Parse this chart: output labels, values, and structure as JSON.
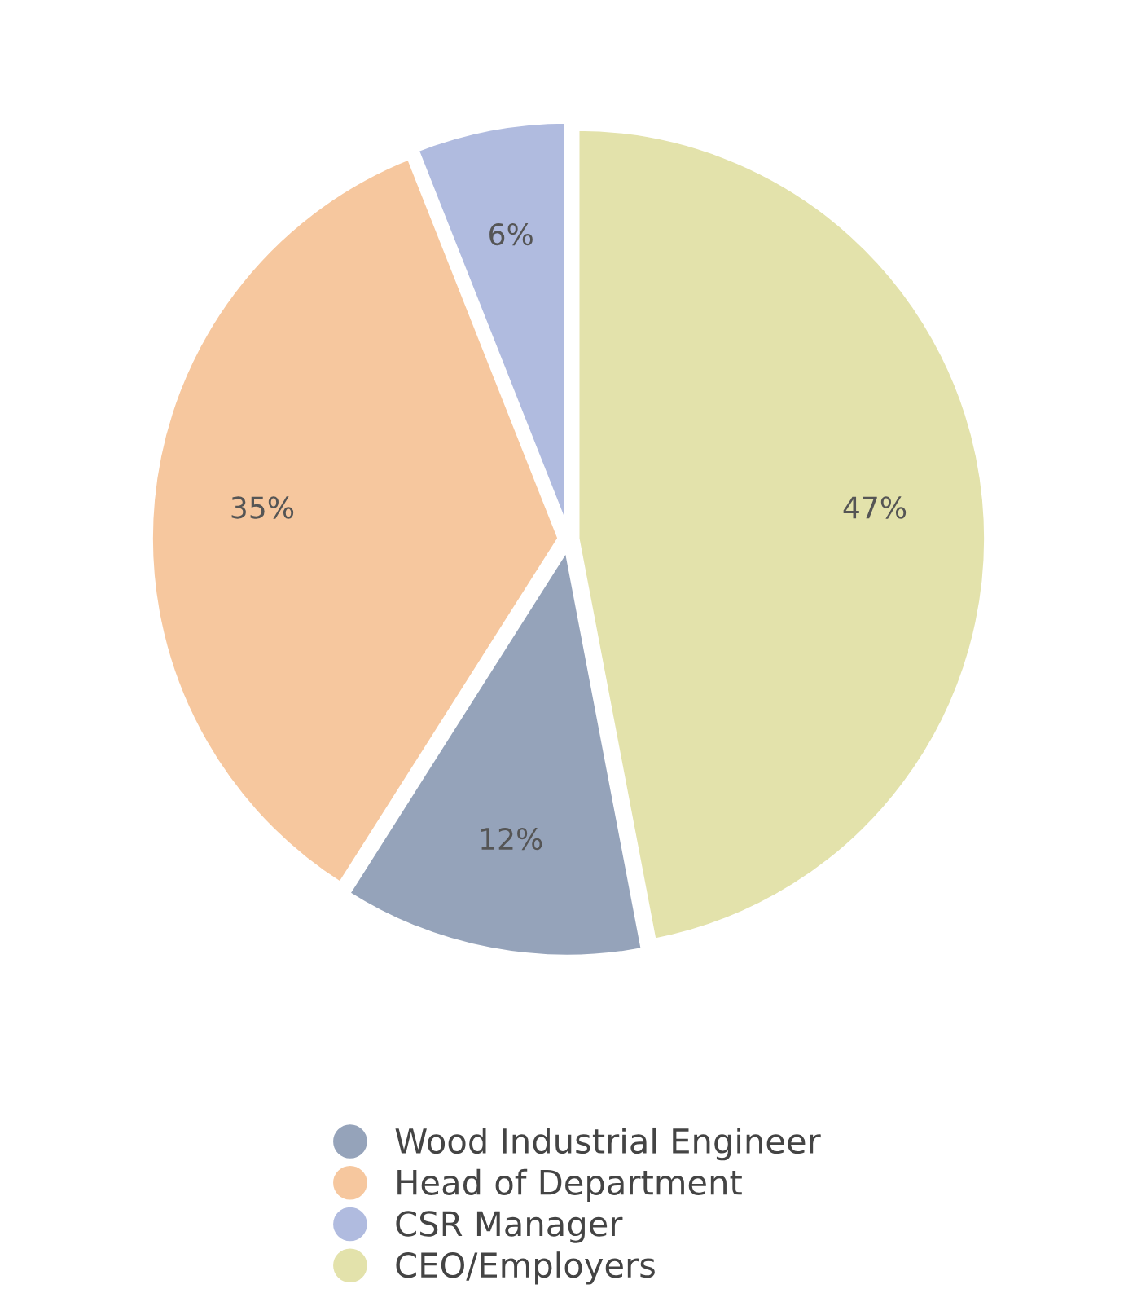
{
  "chart_data": {
    "type": "pie",
    "categories": [
      "Wood Industrial Engineer",
      "Head of Department",
      "CSR Manager",
      "CEO/Employers"
    ],
    "values": [
      12,
      35,
      6,
      47
    ],
    "colors": [
      "#95a3ba",
      "#f6c79e",
      "#b0bbdf",
      "#e3e2ab"
    ],
    "value_labels": [
      "12%",
      "35%",
      "6%",
      "47%"
    ],
    "legend": "bottom"
  }
}
